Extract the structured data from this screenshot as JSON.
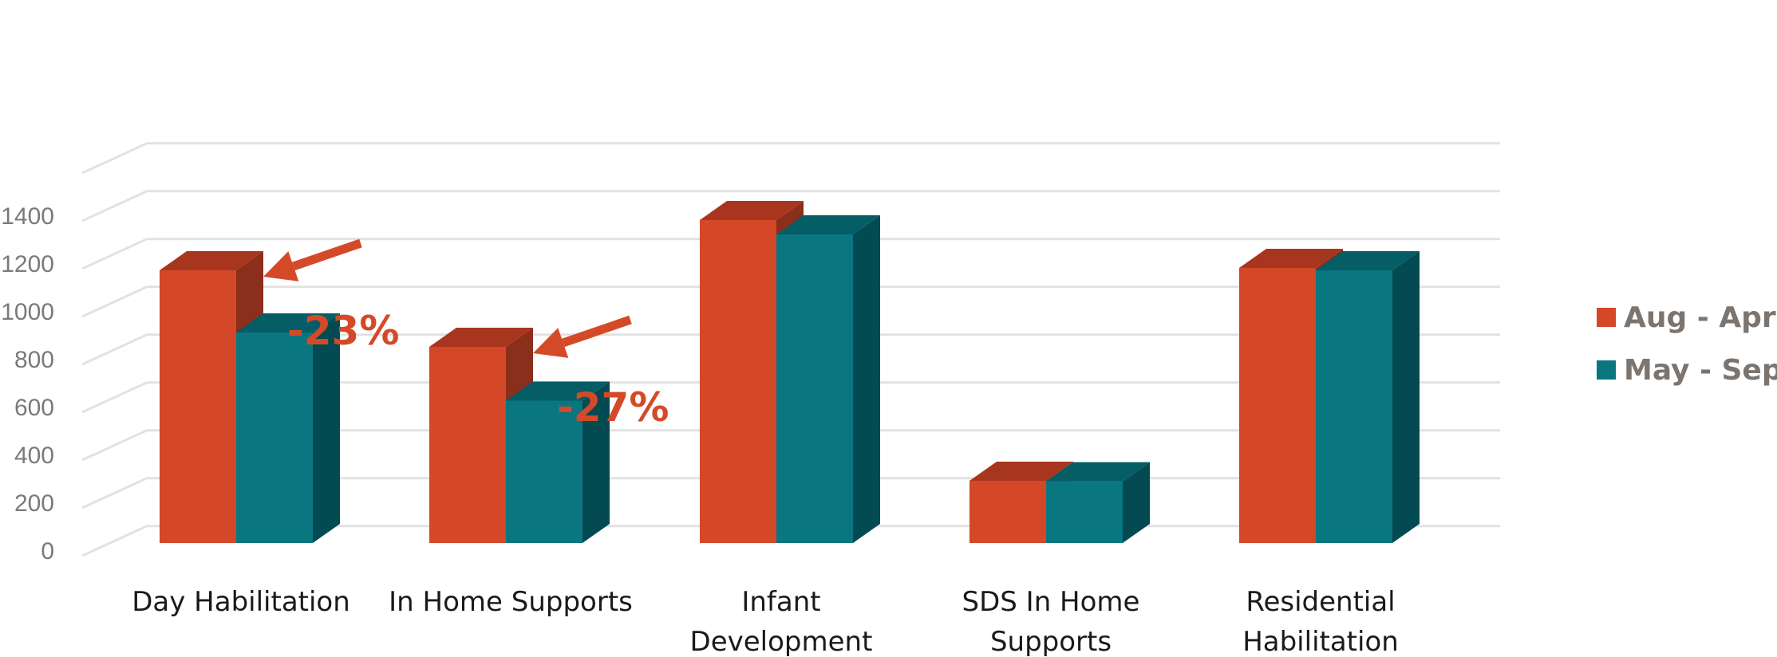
{
  "chart_data": {
    "type": "bar",
    "categories": [
      [
        "Day Habilitation"
      ],
      [
        "In Home Supports"
      ],
      [
        "Infant",
        "Development"
      ],
      [
        "SDS In Home",
        "Supports"
      ],
      [
        "Residential",
        "Habilitation"
      ]
    ],
    "series": [
      {
        "name": "Aug - April",
        "values": [
          1140,
          820,
          1350,
          260,
          1150
        ]
      },
      {
        "name": "May - Sept",
        "values": [
          880,
          595,
          1290,
          258,
          1140
        ]
      }
    ],
    "ylim": [
      0,
      1400
    ],
    "yticks": [
      "0",
      "200",
      "400",
      "600",
      "800",
      "1000",
      "1200",
      "1400"
    ],
    "grid": true,
    "legend_position": "right",
    "annotations": [
      {
        "text": "-23%",
        "category_index": 0
      },
      {
        "text": "-27%",
        "category_index": 1
      }
    ],
    "colors": {
      "series": [
        "#d44727",
        "#0a7680"
      ],
      "series_side": [
        "#8b2e1b",
        "#044a52"
      ],
      "series_top": [
        "#a8361e",
        "#055d66"
      ],
      "arrow": "#d44a28",
      "grid": "#e2e2e2"
    }
  }
}
